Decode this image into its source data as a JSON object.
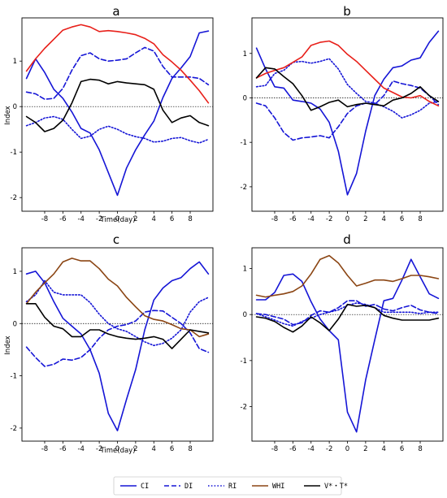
{
  "colors": {
    "CI": "#1515d6",
    "DI": "#1515d6",
    "RI": "#1515d6",
    "WHI": "#8b4513",
    "VT": "#000000",
    "WHI_red": "#e8201a"
  },
  "legend": [
    {
      "key": "CI",
      "label": "CI",
      "dash": "solid",
      "color": "#1515d6"
    },
    {
      "key": "DI",
      "label": "DI",
      "dash": "dashed",
      "color": "#1515d6"
    },
    {
      "key": "RI",
      "label": "RI",
      "dash": "dotted",
      "color": "#1515d6"
    },
    {
      "key": "WHI",
      "label": "WHI",
      "dash": "solid",
      "color": "#8b4513"
    },
    {
      "key": "VT",
      "label": "V*・T*",
      "dash": "solid",
      "color": "#000000"
    }
  ],
  "chart_data": [
    {
      "type": "line",
      "title": "a",
      "xlabel": "Time(day)",
      "ylabel": "Index",
      "xlim": [
        -10.5,
        10.5
      ],
      "ylim": [
        -2.3,
        1.95
      ],
      "xticks": [
        -8,
        -6,
        -4,
        -2,
        0,
        2,
        4,
        6,
        8
      ],
      "yticks": [
        -2,
        -1,
        0,
        1
      ],
      "x": [
        -10,
        -9,
        -8,
        -7,
        -6,
        -5,
        -4,
        -3,
        -2,
        -1,
        0,
        1,
        2,
        3,
        4,
        5,
        6,
        7,
        8,
        9,
        10
      ],
      "series": [
        {
          "name": "CI",
          "style": "solid",
          "color": "#1515d6",
          "values": [
            0.62,
            1.05,
            0.75,
            0.38,
            0.18,
            -0.12,
            -0.48,
            -0.58,
            -0.95,
            -1.45,
            -1.95,
            -1.35,
            -0.95,
            -0.62,
            -0.32,
            0.2,
            0.62,
            0.85,
            1.1,
            1.62,
            1.66
          ]
        },
        {
          "name": "DI",
          "style": "dashed",
          "color": "#1515d6",
          "values": [
            0.32,
            0.28,
            0.16,
            0.18,
            0.4,
            0.8,
            1.12,
            1.18,
            1.05,
            1.0,
            1.02,
            1.05,
            1.18,
            1.3,
            1.22,
            0.88,
            0.65,
            0.65,
            0.65,
            0.62,
            0.48
          ]
        },
        {
          "name": "RI",
          "style": "dotted",
          "color": "#1515d6",
          "values": [
            -0.42,
            -0.35,
            -0.25,
            -0.22,
            -0.28,
            -0.5,
            -0.7,
            -0.65,
            -0.5,
            -0.43,
            -0.5,
            -0.6,
            -0.66,
            -0.7,
            -0.78,
            -0.76,
            -0.7,
            -0.68,
            -0.75,
            -0.8,
            -0.72
          ]
        },
        {
          "name": "WHI",
          "style": "solid",
          "color": "#e8201a",
          "values": [
            0.78,
            1.05,
            1.28,
            1.48,
            1.68,
            1.75,
            1.8,
            1.75,
            1.65,
            1.67,
            1.65,
            1.62,
            1.58,
            1.5,
            1.38,
            1.14,
            0.98,
            0.8,
            0.58,
            0.35,
            0.08
          ]
        },
        {
          "name": "V*・T*",
          "style": "solid",
          "color": "#000000",
          "values": [
            -0.22,
            -0.35,
            -0.55,
            -0.48,
            -0.3,
            0.08,
            0.55,
            0.6,
            0.58,
            0.5,
            0.55,
            0.52,
            0.5,
            0.48,
            0.38,
            -0.08,
            -0.35,
            -0.25,
            -0.2,
            -0.35,
            -0.42
          ]
        }
      ]
    },
    {
      "type": "line",
      "title": "b",
      "xlabel": "",
      "ylabel": "",
      "xlim": [
        -10.5,
        10.5
      ],
      "ylim": [
        -2.55,
        1.8
      ],
      "xticks": [
        -8,
        -6,
        -4,
        -2,
        0,
        2,
        4,
        6,
        8
      ],
      "yticks": [
        -2,
        -1,
        0,
        1
      ],
      "x": [
        -10,
        -9,
        -8,
        -7,
        -6,
        -5,
        -4,
        -3,
        -2,
        -1,
        0,
        1,
        2,
        3,
        4,
        5,
        6,
        7,
        8,
        9,
        10
      ],
      "series": [
        {
          "name": "CI",
          "style": "solid",
          "color": "#1515d6",
          "values": [
            1.12,
            0.65,
            0.25,
            0.22,
            -0.05,
            -0.08,
            -0.12,
            -0.25,
            -0.55,
            -1.2,
            -2.18,
            -1.7,
            -0.75,
            0.05,
            0.42,
            0.68,
            0.72,
            0.85,
            0.9,
            1.25,
            1.5
          ]
        },
        {
          "name": "DI",
          "style": "dashed",
          "color": "#1515d6",
          "values": [
            -0.12,
            -0.18,
            -0.45,
            -0.78,
            -0.95,
            -0.9,
            -0.88,
            -0.85,
            -0.9,
            -0.65,
            -0.35,
            -0.18,
            -0.12,
            -0.15,
            0.05,
            0.38,
            0.32,
            0.28,
            0.22,
            0.05,
            -0.15
          ]
        },
        {
          "name": "RI",
          "style": "dotted",
          "color": "#1515d6",
          "values": [
            0.25,
            0.28,
            0.55,
            0.62,
            0.8,
            0.82,
            0.78,
            0.82,
            0.88,
            0.65,
            0.3,
            0.1,
            -0.08,
            -0.12,
            -0.2,
            -0.3,
            -0.45,
            -0.38,
            -0.28,
            -0.12,
            -0.08
          ]
        },
        {
          "name": "WHI",
          "style": "solid",
          "color": "#e8201a",
          "values": [
            0.45,
            0.55,
            0.62,
            0.68,
            0.8,
            0.92,
            1.18,
            1.25,
            1.28,
            1.18,
            0.98,
            0.82,
            0.62,
            0.42,
            0.22,
            0.12,
            0.02,
            0.0,
            0.05,
            -0.08,
            -0.18
          ]
        },
        {
          "name": "V*・T*",
          "style": "solid",
          "color": "#000000",
          "values": [
            0.45,
            0.68,
            0.65,
            0.48,
            0.32,
            0.05,
            -0.28,
            -0.2,
            -0.1,
            -0.05,
            -0.2,
            -0.15,
            -0.12,
            -0.15,
            -0.18,
            -0.05,
            0.0,
            0.1,
            0.25,
            0.05,
            -0.08
          ]
        }
      ]
    },
    {
      "type": "line",
      "title": "c",
      "xlabel": "Time(day)",
      "ylabel": "Index",
      "xlim": [
        -10.5,
        10.5
      ],
      "ylim": [
        -2.25,
        1.45
      ],
      "xticks": [
        -8,
        -6,
        -4,
        -2,
        0,
        2,
        4,
        6,
        8
      ],
      "yticks": [
        -2,
        -1,
        0,
        1
      ],
      "x": [
        -10,
        -9,
        -8,
        -7,
        -6,
        -5,
        -4,
        -3,
        -2,
        -1,
        0,
        1,
        2,
        3,
        4,
        5,
        6,
        7,
        8,
        9,
        10
      ],
      "series": [
        {
          "name": "CI",
          "style": "solid",
          "color": "#1515d6",
          "values": [
            0.95,
            1.0,
            0.78,
            0.42,
            0.1,
            -0.05,
            -0.2,
            -0.5,
            -0.95,
            -1.72,
            -2.05,
            -1.45,
            -0.88,
            -0.12,
            0.45,
            0.68,
            0.82,
            0.88,
            1.05,
            1.18,
            0.95
          ]
        },
        {
          "name": "DI",
          "style": "dashed",
          "color": "#1515d6",
          "values": [
            -0.45,
            -0.65,
            -0.82,
            -0.78,
            -0.68,
            -0.7,
            -0.65,
            -0.5,
            -0.28,
            -0.12,
            -0.05,
            -0.02,
            0.05,
            0.22,
            0.25,
            0.24,
            0.12,
            0.0,
            -0.18,
            -0.48,
            -0.55
          ]
        },
        {
          "name": "RI",
          "style": "dotted",
          "color": "#1515d6",
          "values": [
            0.42,
            0.55,
            0.82,
            0.6,
            0.55,
            0.55,
            0.55,
            0.4,
            0.18,
            0.0,
            -0.1,
            -0.15,
            -0.25,
            -0.35,
            -0.42,
            -0.38,
            -0.28,
            -0.12,
            0.22,
            0.42,
            0.5
          ]
        },
        {
          "name": "WHI",
          "style": "solid",
          "color": "#8b4513",
          "values": [
            0.38,
            0.6,
            0.78,
            0.95,
            1.18,
            1.25,
            1.2,
            1.2,
            1.05,
            0.85,
            0.72,
            0.5,
            0.32,
            0.15,
            0.08,
            0.05,
            -0.02,
            -0.1,
            -0.12,
            -0.25,
            -0.2
          ]
        },
        {
          "name": "V*・T*",
          "style": "solid",
          "color": "#000000",
          "values": [
            0.38,
            0.38,
            0.12,
            -0.05,
            -0.1,
            -0.25,
            -0.25,
            -0.12,
            -0.12,
            -0.2,
            -0.25,
            -0.28,
            -0.3,
            -0.28,
            -0.25,
            -0.3,
            -0.48,
            -0.3,
            -0.12,
            -0.15,
            -0.18
          ]
        }
      ]
    },
    {
      "type": "line",
      "title": "d",
      "xlabel": "",
      "ylabel": "",
      "xlim": [
        -10.5,
        10.5
      ],
      "ylim": [
        -2.75,
        1.45
      ],
      "xticks": [
        -8,
        -6,
        -4,
        -2,
        0,
        2,
        4,
        6,
        8
      ],
      "yticks": [
        -2,
        -1,
        0,
        1
      ],
      "x": [
        -10,
        -9,
        -8,
        -7,
        -6,
        -5,
        -4,
        -3,
        -2,
        -1,
        0,
        1,
        2,
        3,
        4,
        5,
        6,
        7,
        8,
        9,
        10
      ],
      "series": [
        {
          "name": "CI",
          "style": "solid",
          "color": "#1515d6",
          "values": [
            0.32,
            0.32,
            0.48,
            0.85,
            0.88,
            0.72,
            0.28,
            -0.1,
            -0.35,
            -0.55,
            -2.12,
            -2.55,
            -1.42,
            -0.55,
            0.3,
            0.35,
            0.75,
            1.2,
            0.82,
            0.45,
            0.35
          ]
        },
        {
          "name": "DI",
          "style": "dashed",
          "color": "#1515d6",
          "values": [
            0.02,
            0.0,
            -0.05,
            -0.1,
            -0.22,
            -0.18,
            -0.02,
            0.08,
            0.05,
            0.15,
            0.3,
            0.3,
            0.18,
            0.22,
            0.12,
            0.08,
            0.15,
            0.2,
            0.1,
            0.05,
            0.02
          ]
        },
        {
          "name": "RI",
          "style": "dotted",
          "color": "#1515d6",
          "values": [
            0.02,
            -0.05,
            -0.12,
            -0.2,
            -0.25,
            -0.15,
            -0.08,
            0.0,
            0.05,
            0.1,
            0.2,
            0.25,
            0.22,
            0.15,
            0.05,
            0.05,
            0.05,
            0.05,
            0.02,
            0.05,
            0.05
          ]
        },
        {
          "name": "WHI",
          "style": "solid",
          "color": "#8b4513",
          "values": [
            0.42,
            0.38,
            0.42,
            0.45,
            0.5,
            0.62,
            0.88,
            1.2,
            1.28,
            1.12,
            0.85,
            0.62,
            0.68,
            0.75,
            0.75,
            0.72,
            0.78,
            0.85,
            0.85,
            0.82,
            0.78
          ]
        },
        {
          "name": "V*・T*",
          "style": "solid",
          "color": "#000000",
          "values": [
            -0.05,
            -0.08,
            -0.15,
            -0.28,
            -0.38,
            -0.25,
            -0.05,
            -0.18,
            -0.35,
            -0.1,
            0.22,
            0.18,
            0.2,
            0.15,
            -0.02,
            -0.08,
            -0.12,
            -0.12,
            -0.12,
            -0.12,
            -0.08
          ]
        }
      ]
    }
  ]
}
